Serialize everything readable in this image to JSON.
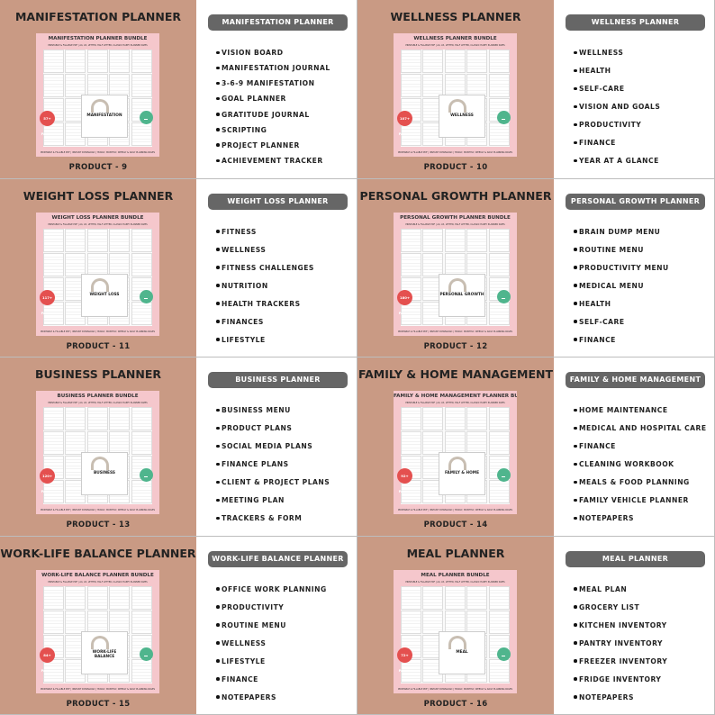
{
  "thumbnail_subtitle": "PRINTABLE & FILLABLE PDF | A4, A5, LETTER, HALF LETTER, CLASSIC HAPPY PLANNER SIZES",
  "thumbnail_footer": "PRINTABLE & FILLABLE PDF | INSTANT DOWNLOAD | YEARLY, MONTHLY, WEEKLY & DAILY PLANNING PAGES",
  "products": [
    {
      "title": "MANIFESTATION PLANNER",
      "bundle_title": "MANIFESTATION PLANNER BUNDLE",
      "cover_title": "MANIFESTATION",
      "badge": "57+ PAGES",
      "product_label": "PRODUCT - 9",
      "header": "MANIFESTATION PLANNER",
      "items": [
        "VISION BOARD",
        "MANIFESTATION JOURNAL",
        "3-6-9 MANIFESTATION",
        "GOAL PLANNER",
        "GRATITUDE JOURNAL",
        "SCRIPTING",
        "PROJECT PLANNER",
        "ACHIEVEMENT TRACKER"
      ]
    },
    {
      "title": "WELLNESS PLANNER",
      "bundle_title": "WELLNESS PLANNER BUNDLE",
      "cover_title": "WELLNESS",
      "badge": "107+ PAGES",
      "product_label": "PRODUCT - 10",
      "header": "WELLNESS PLANNER",
      "items": [
        "WELLNESS",
        "HEALTH",
        "SELF-CARE",
        "VISION AND GOALS",
        "PRODUCTIVITY",
        "FINANCE",
        "YEAR AT A GLANCE"
      ]
    },
    {
      "title": "WEIGHT LOSS PLANNER",
      "bundle_title": "WEIGHT LOSS PLANNER BUNDLE",
      "cover_title": "WEIGHT LOSS",
      "badge": "117+ PAGES",
      "product_label": "PRODUCT - 11",
      "header": "WEIGHT LOSS PLANNER",
      "items": [
        "FITNESS",
        "WELLNESS",
        "FITNESS CHALLENGES",
        "NUTRITION",
        "HEALTH TRACKERS",
        "FINANCES",
        "LIFESTYLE"
      ]
    },
    {
      "title": "PERSONAL GROWTH PLANNER",
      "bundle_title": "PERSONAL GROWTH PLANNER BUNDLE",
      "cover_title": "PERSONAL GROWTH",
      "badge": "180+ PAGES",
      "product_label": "PRODUCT - 12",
      "header": "PERSONAL GROWTH PLANNER",
      "items": [
        "BRAIN DUMP MENU",
        "ROUTINE MENU",
        "PRODUCTIVITY MENU",
        "MEDICAL MENU",
        "HEALTH",
        "SELF-CARE",
        "FINANCE"
      ]
    },
    {
      "title": "BUSINESS PLANNER",
      "bundle_title": "BUSINESS PLANNER BUNDLE",
      "cover_title": "BUSINESS",
      "badge": "120+ PAGES",
      "product_label": "PRODUCT - 13",
      "header": "BUSINESS PLANNER",
      "items": [
        "BUSINESS MENU",
        "PRODUCT PLANS",
        "SOCIAL MEDIA PLANS",
        "FINANCE PLANS",
        "CLIENT & PROJECT PLANS",
        "MEETING PLAN",
        "TRACKERS & FORM"
      ]
    },
    {
      "title": "FAMILY & HOME MANAGEMENT",
      "bundle_title": "FAMILY & HOME MANAGEMENT PLANNER BUNDLE",
      "cover_title": "FAMILY & HOME",
      "badge": "92+ PAGES",
      "product_label": "PRODUCT - 14",
      "header": "FAMILY & HOME MANAGEMENT",
      "items": [
        "HOME MAINTENANCE",
        "MEDICAL AND HOSPITAL CARE",
        "FINANCE",
        "CLEANING WORKBOOK",
        "MEALS & FOOD PLANNING",
        "FAMILY VEHICLE PLANNER",
        "NOTEPAPERS"
      ]
    },
    {
      "title": "WORK-LIFE BALANCE PLANNER",
      "bundle_title": "WORK-LIFE BALANCE PLANNER BUNDLE",
      "cover_title": "WORK-LIFE BALANCE",
      "badge": "84+ PAGES",
      "product_label": "PRODUCT - 15",
      "header": "WORK-LIFE BALANCE PLANNER",
      "items": [
        "OFFICE WORK PLANNING",
        "PRODUCTIVITY",
        "ROUTINE MENU",
        "WELLNESS",
        "LIFESTYLE",
        "FINANCE",
        "NOTEPAPERS"
      ]
    },
    {
      "title": "MEAL PLANNER",
      "bundle_title": "MEAL PLANNER BUNDLE",
      "cover_title": "MEAL",
      "badge": "72+ PAGES",
      "product_label": "PRODUCT - 16",
      "header": "MEAL PLANNER",
      "items": [
        "MEAL PLAN",
        "GROCERY LIST",
        "KITCHEN INVENTORY",
        "PANTRY INVENTORY",
        "FREEZER INVENTORY",
        "FRIDGE INVENTORY",
        "NOTEPAPERS"
      ]
    }
  ]
}
